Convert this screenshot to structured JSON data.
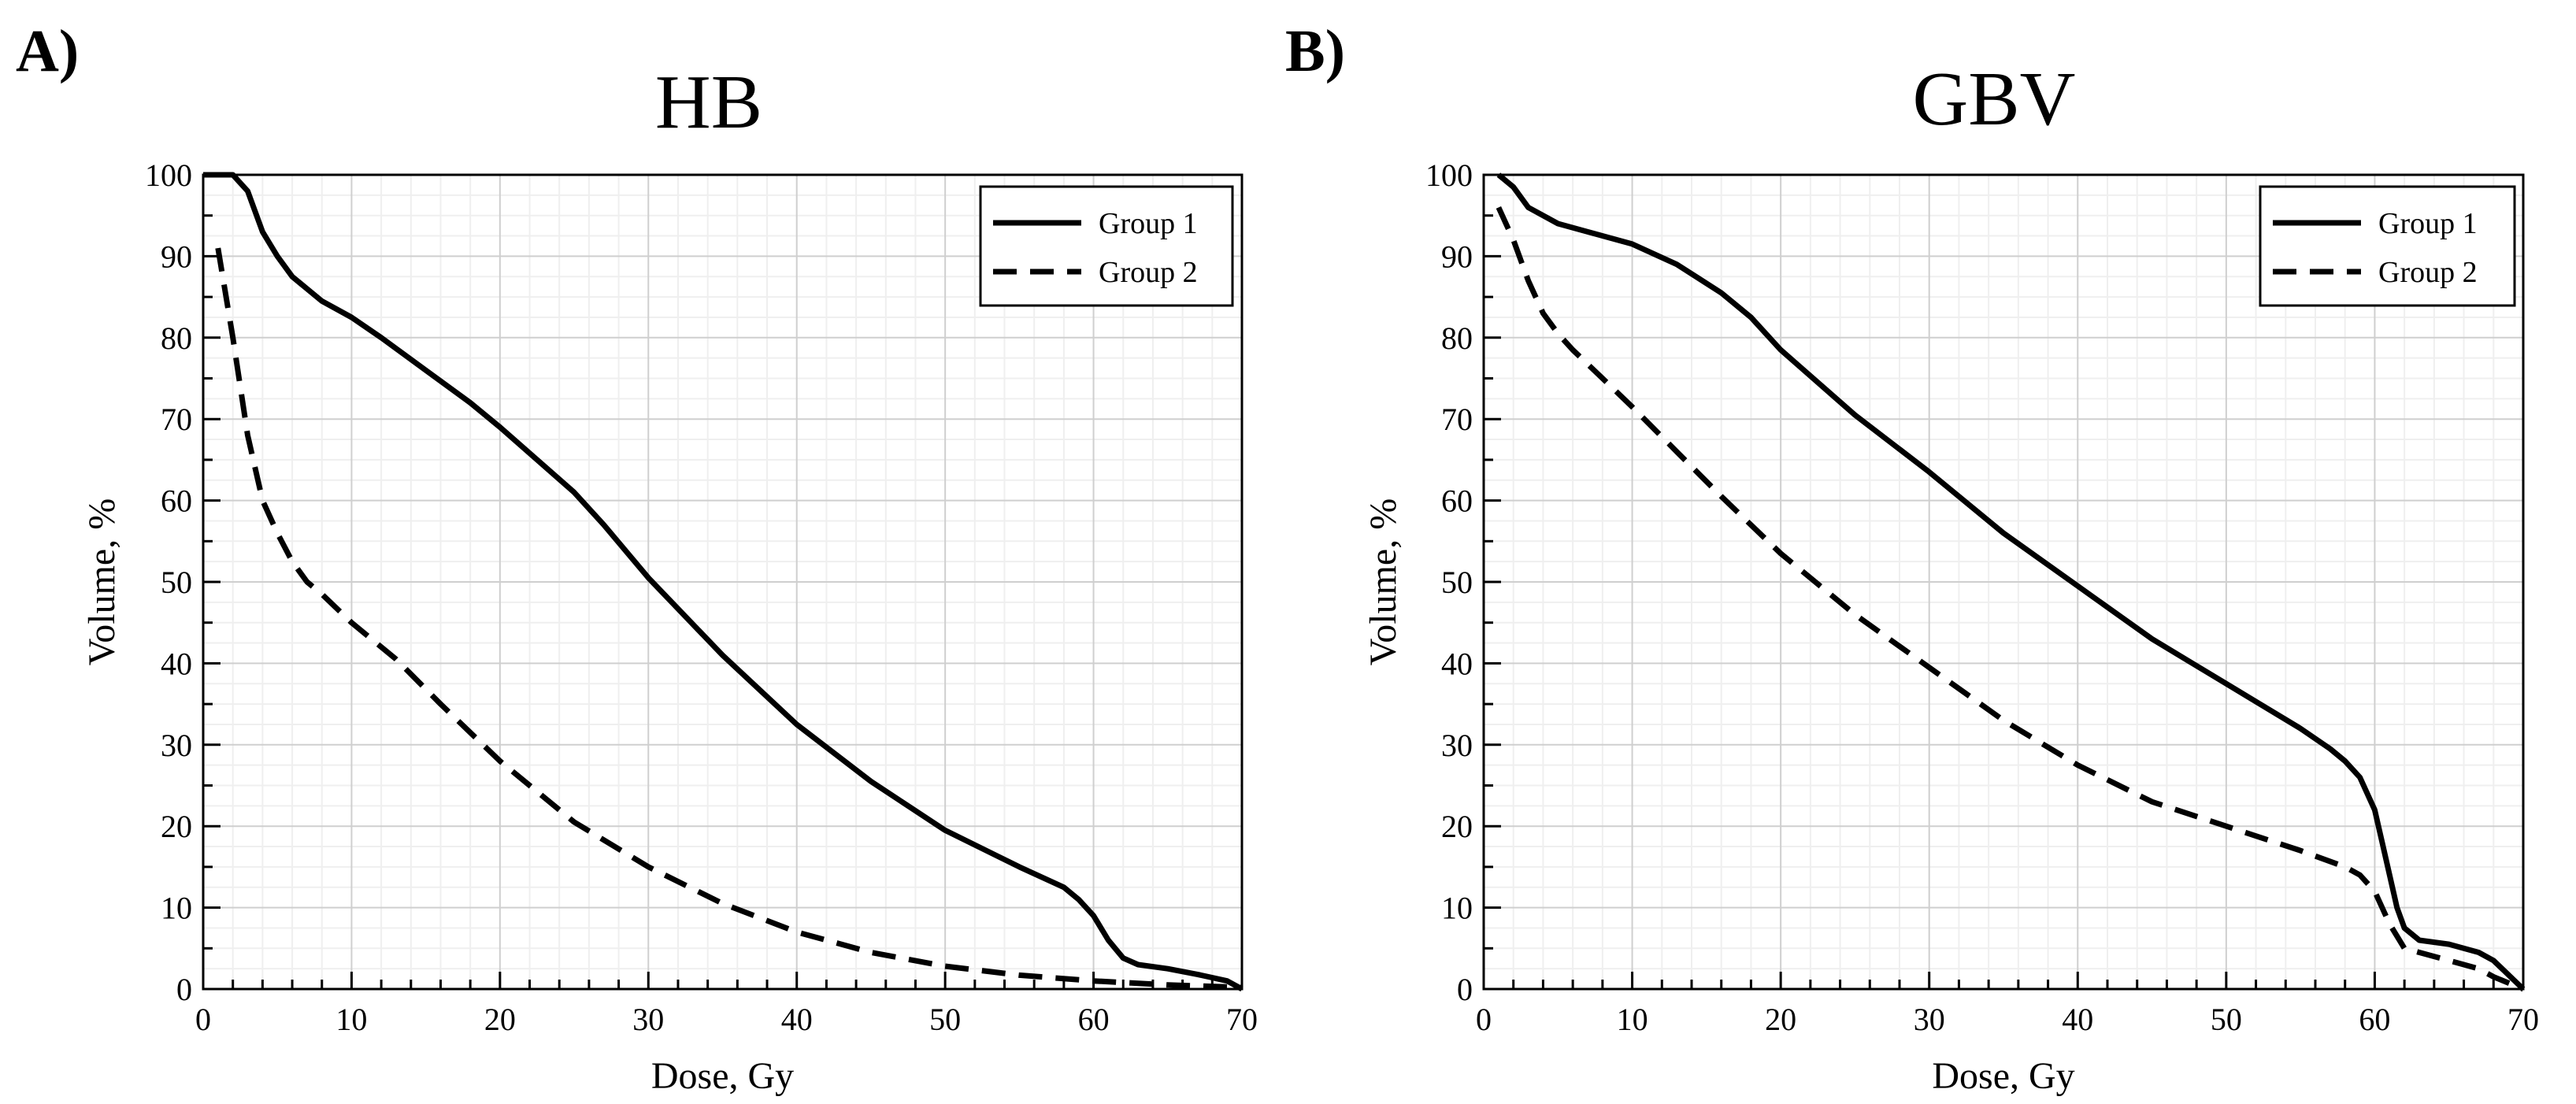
{
  "chart_data": [
    {
      "type": "line",
      "panel": "A)",
      "title": "HB",
      "xlabel": "Dose, Gy",
      "ylabel": "Volume, %",
      "xlim": [
        0,
        70
      ],
      "ylim": [
        0,
        100
      ],
      "xticks": [
        0,
        10,
        20,
        30,
        40,
        50,
        60,
        70
      ],
      "yticks": [
        0,
        10,
        20,
        30,
        40,
        50,
        60,
        70,
        80,
        90,
        100
      ],
      "grid": true,
      "legend_position": "top-right",
      "series": [
        {
          "name": "Group 1",
          "style": "solid",
          "x": [
            0,
            2,
            3,
            4,
            5,
            6,
            7,
            8,
            10,
            12,
            15,
            18,
            20,
            25,
            27,
            30,
            35,
            40,
            45,
            50,
            55,
            58,
            59,
            60,
            61,
            62,
            63,
            65,
            67,
            69,
            70
          ],
          "y": [
            100,
            100,
            98,
            93,
            90,
            87.5,
            86,
            84.5,
            82.5,
            80,
            76,
            72,
            69,
            61,
            57,
            50.5,
            41,
            32.5,
            25.5,
            19.5,
            15,
            12.5,
            11,
            9,
            6,
            3.8,
            3,
            2.5,
            1.8,
            1,
            0
          ]
        },
        {
          "name": "Group 2",
          "style": "dashed",
          "x": [
            1,
            2,
            3,
            4,
            5,
            6,
            7,
            8,
            10,
            13,
            16,
            20,
            25,
            30,
            35,
            40,
            45,
            50,
            55,
            60,
            65,
            70
          ],
          "y": [
            91,
            80,
            68,
            60,
            56,
            52.5,
            50,
            48.5,
            45,
            40.5,
            35,
            28,
            20.5,
            15,
            10.5,
            7,
            4.5,
            2.8,
            1.7,
            1,
            0.5,
            0.2
          ]
        }
      ]
    },
    {
      "type": "line",
      "panel": "B)",
      "title": "GBV",
      "xlabel": "Dose, Gy",
      "ylabel": "Volume, %",
      "xlim": [
        0,
        70
      ],
      "ylim": [
        0,
        100
      ],
      "xticks": [
        0,
        10,
        20,
        30,
        40,
        50,
        60,
        70
      ],
      "yticks": [
        0,
        10,
        20,
        30,
        40,
        50,
        60,
        70,
        80,
        90,
        100
      ],
      "grid": true,
      "legend_position": "top-right",
      "series": [
        {
          "name": "Group 1",
          "style": "solid",
          "x": [
            1,
            2,
            3,
            5,
            7,
            10,
            13,
            16,
            18,
            20,
            25,
            30,
            35,
            40,
            45,
            50,
            55,
            57,
            58,
            59,
            60,
            60.5,
            61,
            61.5,
            62,
            63,
            65,
            67,
            68,
            70
          ],
          "y": [
            100,
            98.5,
            96,
            94,
            93,
            91.5,
            89,
            85.5,
            82.5,
            78.5,
            70.5,
            63.5,
            56,
            49.5,
            43,
            37.5,
            32,
            29.5,
            28,
            26,
            22,
            18,
            14,
            10,
            7.5,
            6,
            5.5,
            4.5,
            3.5,
            0
          ]
        },
        {
          "name": "Group 2",
          "style": "dashed",
          "x": [
            1,
            2,
            3,
            4,
            5,
            6,
            8,
            10,
            13,
            16,
            20,
            25,
            30,
            35,
            40,
            45,
            50,
            55,
            58,
            59,
            60,
            61,
            62,
            63,
            65,
            67,
            68,
            70
          ],
          "y": [
            96,
            92,
            87,
            83,
            80.5,
            78.5,
            75,
            71.5,
            66,
            60.5,
            53.5,
            46,
            39.5,
            33,
            27.5,
            23,
            20,
            17,
            15,
            14,
            12,
            8,
            5,
            4.5,
            3.5,
            2.5,
            1.5,
            0
          ]
        }
      ]
    }
  ]
}
